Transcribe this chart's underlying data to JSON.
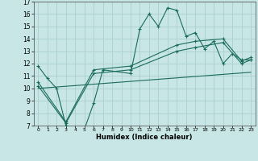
{
  "xlabel": "Humidex (Indice chaleur)",
  "xlim": [
    -0.5,
    23.5
  ],
  "ylim": [
    7,
    17
  ],
  "xticks": [
    0,
    1,
    2,
    3,
    4,
    5,
    6,
    7,
    8,
    9,
    10,
    11,
    12,
    13,
    14,
    15,
    16,
    17,
    18,
    19,
    20,
    21,
    22,
    23
  ],
  "yticks": [
    7,
    8,
    9,
    10,
    11,
    12,
    13,
    14,
    15,
    16,
    17
  ],
  "bg_color": "#c8e6e6",
  "grid_color": "#aacece",
  "line_color": "#1a6b5a",
  "line1_x": [
    0,
    1,
    2,
    3,
    4,
    5,
    6,
    7,
    10,
    11,
    12,
    13,
    14,
    15,
    16,
    17,
    18,
    19,
    20,
    21,
    22,
    23
  ],
  "line1_y": [
    11.8,
    10.8,
    10.0,
    7.0,
    6.7,
    6.7,
    8.8,
    11.5,
    11.2,
    14.8,
    16.0,
    15.0,
    16.5,
    16.3,
    14.2,
    14.5,
    13.2,
    13.8,
    12.0,
    12.8,
    12.3,
    12.3
  ],
  "line2_x": [
    0,
    3,
    6,
    10,
    15,
    17,
    20,
    22,
    23
  ],
  "line2_y": [
    10.5,
    7.3,
    11.5,
    11.8,
    13.5,
    13.8,
    14.0,
    12.2,
    12.5
  ],
  "line3_x": [
    0,
    3,
    6,
    10,
    15,
    17,
    20,
    22,
    23
  ],
  "line3_y": [
    10.2,
    7.2,
    11.2,
    11.5,
    13.0,
    13.3,
    13.7,
    12.0,
    12.3
  ],
  "line4_x": [
    0,
    23
  ],
  "line4_y": [
    10.0,
    11.3
  ]
}
